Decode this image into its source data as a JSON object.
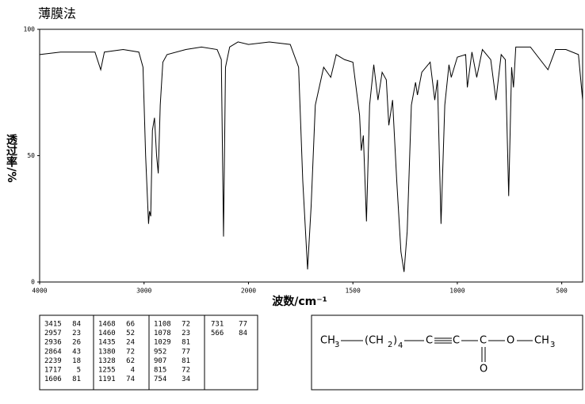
{
  "chart_data": {
    "type": "line",
    "title": "薄膜法",
    "x_label": "波数/cm⁻¹",
    "y_label": "透过率/%",
    "xlim": [
      4000,
      400
    ],
    "xticks": [
      4000,
      3000,
      2000,
      1500,
      1000,
      500
    ],
    "ylim": [
      0,
      100
    ],
    "yticks": [
      0,
      50,
      100
    ],
    "color": "#000000",
    "x": [
      4000,
      3800,
      3600,
      3470,
      3415,
      3380,
      3200,
      3050,
      3010,
      2985,
      2957,
      2948,
      2936,
      2920,
      2900,
      2880,
      2864,
      2845,
      2820,
      2780,
      2600,
      2450,
      2300,
      2260,
      2239,
      2220,
      2180,
      2100,
      2000,
      1900,
      1800,
      1760,
      1740,
      1717,
      1700,
      1680,
      1640,
      1606,
      1580,
      1540,
      1500,
      1468,
      1460,
      1450,
      1435,
      1420,
      1400,
      1380,
      1360,
      1340,
      1328,
      1310,
      1290,
      1270,
      1255,
      1240,
      1220,
      1200,
      1191,
      1170,
      1130,
      1108,
      1095,
      1078,
      1060,
      1040,
      1029,
      1000,
      960,
      952,
      930,
      907,
      880,
      840,
      815,
      790,
      770,
      754,
      740,
      731,
      720,
      650,
      566,
      530,
      480,
      420,
      400
    ],
    "values": [
      90,
      91,
      91,
      91,
      84,
      91,
      92,
      91,
      85,
      50,
      23,
      28,
      26,
      60,
      65,
      50,
      43,
      70,
      87,
      90,
      92,
      93,
      92,
      88,
      18,
      85,
      93,
      95,
      94,
      95,
      94,
      85,
      40,
      5,
      30,
      70,
      85,
      81,
      90,
      88,
      87,
      66,
      52,
      58,
      24,
      70,
      86,
      72,
      83,
      80,
      62,
      72,
      40,
      12,
      4,
      20,
      70,
      79,
      74,
      83,
      87,
      72,
      80,
      23,
      70,
      86,
      81,
      89,
      90,
      77,
      91,
      81,
      92,
      88,
      72,
      90,
      88,
      34,
      85,
      77,
      93,
      93,
      84,
      92,
      92,
      90,
      72
    ],
    "peak_table": [
      [
        [
          3415,
          84
        ],
        [
          2957,
          23
        ],
        [
          2936,
          26
        ],
        [
          2864,
          43
        ],
        [
          2239,
          18
        ],
        [
          1717,
          5
        ],
        [
          1606,
          81
        ]
      ],
      [
        [
          1468,
          66
        ],
        [
          1460,
          52
        ],
        [
          1435,
          24
        ],
        [
          1380,
          72
        ],
        [
          1328,
          62
        ],
        [
          1255,
          4
        ],
        [
          1191,
          74
        ]
      ],
      [
        [
          1108,
          72
        ],
        [
          1078,
          23
        ],
        [
          1029,
          81
        ],
        [
          952,
          77
        ],
        [
          907,
          81
        ],
        [
          815,
          72
        ],
        [
          754,
          34
        ]
      ],
      [
        [
          731,
          77
        ],
        [
          566,
          84
        ]
      ]
    ],
    "structure": [
      "CH",
      "3",
      "(CH",
      "2",
      ")",
      "4",
      "C",
      "C",
      "C",
      "O",
      "CH",
      "3",
      "O"
    ]
  }
}
